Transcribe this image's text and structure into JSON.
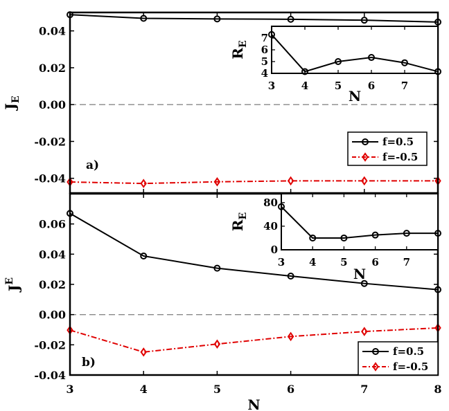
{
  "chart_data": [
    {
      "panel": "a)",
      "type": "line",
      "xlabel": "",
      "ylabel": "J_E",
      "ylabel_main": "J",
      "ylabel_sub": "E",
      "xlim": [
        3,
        8
      ],
      "ylim": [
        -0.048,
        0.05
      ],
      "yticks": [
        0.04,
        0.02,
        0.0,
        -0.02,
        -0.04
      ],
      "ytick_labels": [
        "0.04",
        "0.02",
        "0.00",
        "-0.02",
        "-0.04"
      ],
      "zero_line": true,
      "series": [
        {
          "name": "f=0.5",
          "color": "#000000",
          "marker": "circle",
          "linestyle": "solid",
          "x": [
            3,
            4,
            5,
            6,
            7,
            8
          ],
          "y": [
            0.0488,
            0.0468,
            0.0465,
            0.0463,
            0.0458,
            0.0448
          ]
        },
        {
          "name": "f=-0.5",
          "color": "#e00000",
          "marker": "diamond",
          "linestyle": "dashdot",
          "x": [
            3,
            4,
            5,
            6,
            7,
            8
          ],
          "y": [
            -0.042,
            -0.0428,
            -0.0419,
            -0.0414,
            -0.0414,
            -0.0414
          ]
        }
      ],
      "legend": {
        "placement": "lower-right",
        "entries": [
          "f=0.5",
          "f=-0.5"
        ]
      },
      "inset": {
        "type": "line",
        "xlabel": "N",
        "ylabel": "R_E",
        "ylabel_main": "R",
        "ylabel_sub": "E",
        "xlim": [
          3,
          8
        ],
        "ylim": [
          4,
          8
        ],
        "xticks": [
          3,
          4,
          5,
          6,
          7
        ],
        "xtick_labels": [
          "3",
          "4",
          "5",
          "6",
          "7"
        ],
        "yticks": [
          4,
          5,
          6,
          7
        ],
        "ytick_labels": [
          "4",
          "5",
          "6",
          "7"
        ],
        "series": [
          {
            "color": "#000000",
            "marker": "circle",
            "x": [
              3,
              4,
              5,
              6,
              7,
              8
            ],
            "y": [
              7.3,
              4.15,
              5.0,
              5.35,
              4.9,
              4.15
            ]
          }
        ]
      }
    },
    {
      "panel": "b)",
      "type": "line",
      "xlabel": "N",
      "ylabel": "J^E",
      "ylabel_main": "J",
      "ylabel_sub": "E",
      "xlim": [
        3,
        8
      ],
      "ylim": [
        -0.04,
        0.08
      ],
      "xticks": [
        3,
        4,
        5,
        6,
        7,
        8
      ],
      "xtick_labels": [
        "3",
        "4",
        "5",
        "6",
        "7",
        "8"
      ],
      "yticks": [
        0.06,
        0.04,
        0.02,
        0.0,
        -0.02,
        -0.04
      ],
      "ytick_labels": [
        "0.06",
        "0.04",
        "0.02",
        "0.00",
        "-0.02",
        "-0.04"
      ],
      "zero_line": true,
      "series": [
        {
          "name": "f=0.5",
          "color": "#000000",
          "marker": "circle",
          "linestyle": "solid",
          "x": [
            3,
            4,
            5,
            6,
            7,
            8
          ],
          "y": [
            0.067,
            0.0388,
            0.0307,
            0.0255,
            0.0206,
            0.0165
          ]
        },
        {
          "name": "f=-0.5",
          "color": "#e00000",
          "marker": "diamond",
          "linestyle": "dashdot",
          "x": [
            3,
            4,
            5,
            6,
            7,
            8
          ],
          "y": [
            -0.0103,
            -0.0248,
            -0.0195,
            -0.0145,
            -0.0112,
            -0.0088
          ]
        }
      ],
      "legend": {
        "placement": "lower-right",
        "entries": [
          "f=0.5",
          "f=-0.5"
        ]
      },
      "inset": {
        "type": "line",
        "xlabel": "N",
        "ylabel": "R_E",
        "ylabel_main": "R",
        "ylabel_sub": "E",
        "xlim": [
          3,
          8
        ],
        "ylim": [
          0,
          95
        ],
        "xticks": [
          3,
          4,
          5,
          6,
          7
        ],
        "xtick_labels": [
          "3",
          "4",
          "5",
          "6",
          "7"
        ],
        "yticks": [
          0,
          40,
          80
        ],
        "ytick_labels": [
          "0",
          "40",
          "80"
        ],
        "series": [
          {
            "color": "#000000",
            "marker": "circle",
            "x": [
              3,
              4,
              5,
              6,
              7,
              8
            ],
            "y": [
              73,
              20,
              20,
              25,
              28,
              28
            ]
          }
        ]
      }
    }
  ]
}
